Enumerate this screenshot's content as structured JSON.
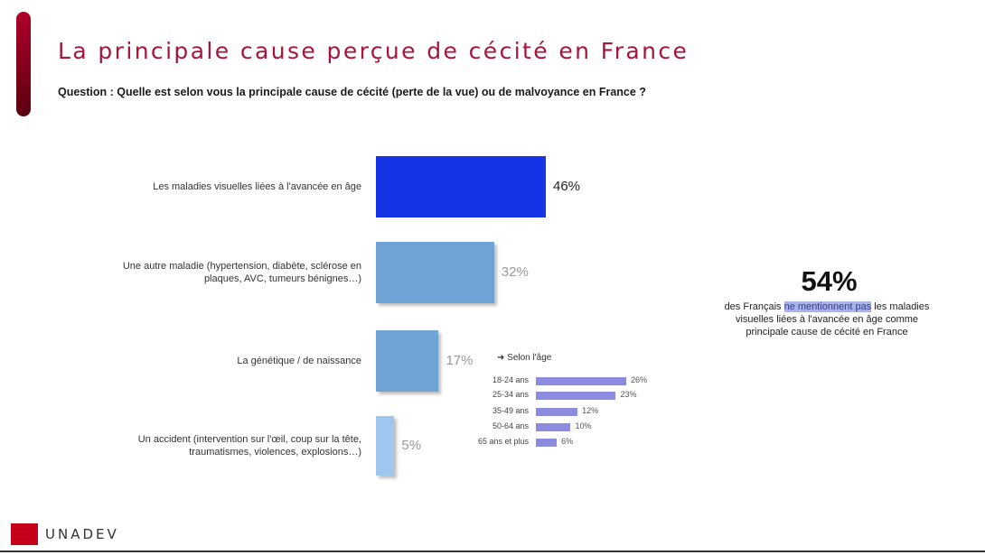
{
  "header": {
    "title": "La principale cause perçue de cécité en France",
    "question": "Question : Quelle est selon vous la principale cause de cécité (perte de la vue) ou de malvoyance en France ?"
  },
  "colors": {
    "accent": "#b0002a",
    "bar_highlight": "#1733e6",
    "bar_default": "#6fa3d6",
    "bar_light": "#9fc6ee",
    "sub_bar": "#8c8cdf"
  },
  "chart_data": [
    {
      "type": "bar",
      "orientation": "horizontal",
      "categories": [
        "Les maladies visuelles liées à l'avancée en âge",
        "Une autre maladie (hypertension, diabète, sclérose en plaques, AVC, tumeurs bénignes…)",
        "La génétique / de naissance",
        "Un accident (intervention sur l'œil, coup sur la tête, traumatismes, violences, explosions…)"
      ],
      "values": [
        46,
        32,
        17,
        5
      ],
      "value_labels": [
        "46%",
        "32%",
        "17%",
        "5%"
      ],
      "xlim": [
        0,
        100
      ],
      "grid": false
    },
    {
      "type": "bar",
      "orientation": "horizontal",
      "header": "Selon l'âge",
      "categories": [
        "18-24 ans",
        "25-34 ans",
        "35-49 ans",
        "50-64 ans",
        "65 ans et plus"
      ],
      "values": [
        26,
        23,
        12,
        10,
        6
      ],
      "value_labels": [
        "26%",
        "23%",
        "12%",
        "10%",
        "6%"
      ],
      "grid": false
    }
  ],
  "callout": {
    "value": "54%",
    "text_before": "des Français ",
    "text_highlight": "ne mentionnent pas",
    "text_after": " les maladies visuelles liées à l'avancée en âge comme principale cause de cécité en France"
  },
  "footer": {
    "logo_text": "UNADEV"
  }
}
